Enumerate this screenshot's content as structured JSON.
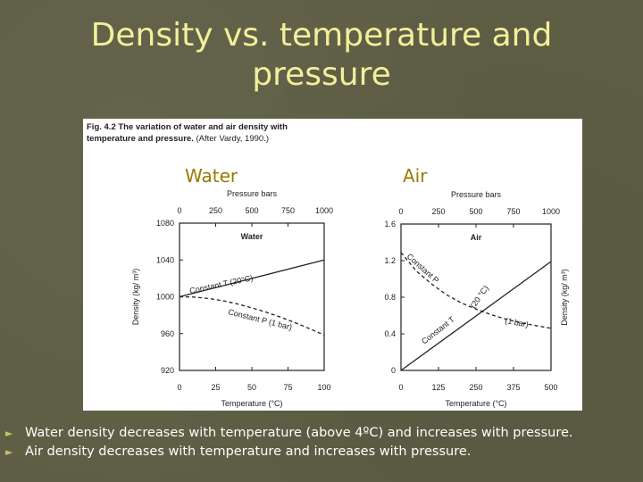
{
  "slide": {
    "title_line1": "Density vs. temperature and",
    "title_line2": "pressure"
  },
  "figure": {
    "caption_bold": "Fig. 4.2",
    "caption_bold2": "The variation of water and air density with",
    "caption_bold3": "temperature and pressure.",
    "caption_rest": "(After Vardy, 1990.)"
  },
  "colors": {
    "background": "#5e5e45",
    "title": "#f2ef9a",
    "panel_label": "#9a7a00",
    "bullet_arrow": "#c8c06a"
  },
  "chart_data": [
    {
      "type": "line",
      "panel_label": "Water",
      "title": "Water",
      "xlabel": "Temperature (°C)",
      "ylabel": "Density (kg/ m³)",
      "top_axis_label": "Pressure bars",
      "xlim": [
        0,
        100
      ],
      "ylim": [
        920,
        1080
      ],
      "xticks": [
        0,
        25,
        50,
        75,
        100
      ],
      "yticks": [
        920,
        960,
        1000,
        1040,
        1080
      ],
      "top_ticks": [
        "0",
        "250",
        "500",
        "750",
        "1000"
      ],
      "series": [
        {
          "name": "Constant T (20°C)",
          "style": "solid",
          "x_axis": "pressure",
          "x": [
            0,
            1000
          ],
          "y": [
            1000,
            1040
          ]
        },
        {
          "name": "Constant P (1 bar)",
          "style": "dashed",
          "x_axis": "temperature",
          "x": [
            0,
            10,
            20,
            30,
            40,
            50,
            60,
            70,
            80,
            90,
            100
          ],
          "y": [
            1000,
            999.7,
            998.2,
            995.7,
            992.2,
            988,
            983.2,
            977.8,
            971.8,
            965.3,
            958.4
          ]
        }
      ]
    },
    {
      "type": "line",
      "panel_label": "Air",
      "title": "Air",
      "xlabel": "Temperature (°C)",
      "ylabel": "Density (kg/ m³)",
      "top_axis_label": "Pressure bars",
      "xlim": [
        0,
        500
      ],
      "ylim": [
        0,
        1.6
      ],
      "xticks": [
        0,
        125,
        250,
        375,
        500
      ],
      "yticks": [
        0,
        0.4,
        0.8,
        1.2,
        1.6
      ],
      "top_ticks": [
        "0",
        "250",
        "500",
        "750",
        "1000"
      ],
      "series": [
        {
          "name": "Constant T (20 °C)",
          "style": "solid",
          "x_axis": "pressure",
          "x": [
            0,
            1000
          ],
          "y": [
            0,
            1.19
          ]
        },
        {
          "name": "Constant P (1 bar)",
          "style": "dashed",
          "x_axis": "temperature",
          "x": [
            0,
            50,
            100,
            150,
            200,
            250,
            300,
            350,
            400,
            450,
            500
          ],
          "y": [
            1.29,
            1.09,
            0.95,
            0.83,
            0.74,
            0.67,
            0.61,
            0.56,
            0.52,
            0.49,
            0.46
          ]
        }
      ]
    }
  ],
  "bullets": [
    "Water density decreases with temperature (above 4ºC) and increases with pressure.",
    "Air density decreases with temperature and increases with pressure."
  ],
  "bullet_glyph": "►"
}
